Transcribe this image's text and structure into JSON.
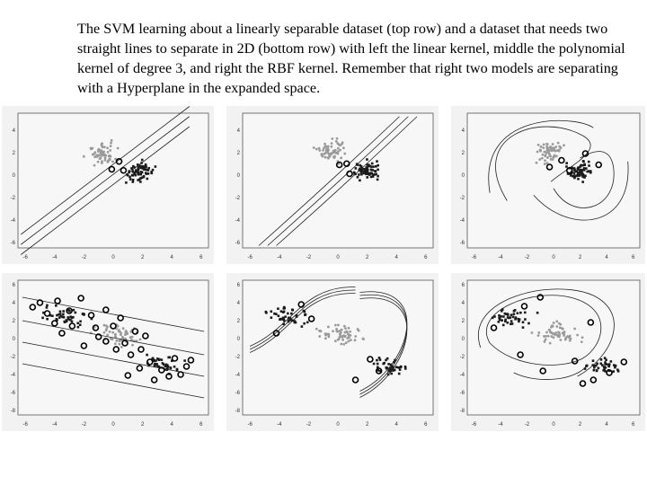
{
  "caption": "The SVM learning about a linearly separable dataset (top row) and a dataset that needs two straight lines to separate in 2D (bottom row) with left the linear kernel, middle the polynomial kernel of degree 3, and right the RBF kernel.  Remember that right two models are separating with a Hyperplane in the expanded space.",
  "panels": [
    {
      "row": "top",
      "kernel": "linear"
    },
    {
      "row": "top",
      "kernel": "polynomial degree 3"
    },
    {
      "row": "top",
      "kernel": "RBF"
    },
    {
      "row": "bottom",
      "kernel": "linear"
    },
    {
      "row": "bottom",
      "kernel": "polynomial degree 3"
    },
    {
      "row": "bottom",
      "kernel": "RBF"
    }
  ],
  "axes": {
    "top_x_ticks": [
      "-6",
      "-4",
      "-2",
      "0",
      "2",
      "4",
      "6"
    ],
    "top_y_ticks": [
      "4",
      "2",
      "0",
      "-2",
      "-4",
      "-6"
    ],
    "bottom_x_ticks": [
      "-6",
      "-4",
      "-2",
      "0",
      "2",
      "4",
      "6"
    ],
    "bottom_y_ticks": [
      "6",
      "4",
      "2",
      "0",
      "-2",
      "-4",
      "-6",
      "-8"
    ]
  },
  "colors": {
    "class_a": "#9a9a9a",
    "class_b": "#1a1a1a",
    "boundary": "#222222",
    "background": "#f2f2f2"
  }
}
